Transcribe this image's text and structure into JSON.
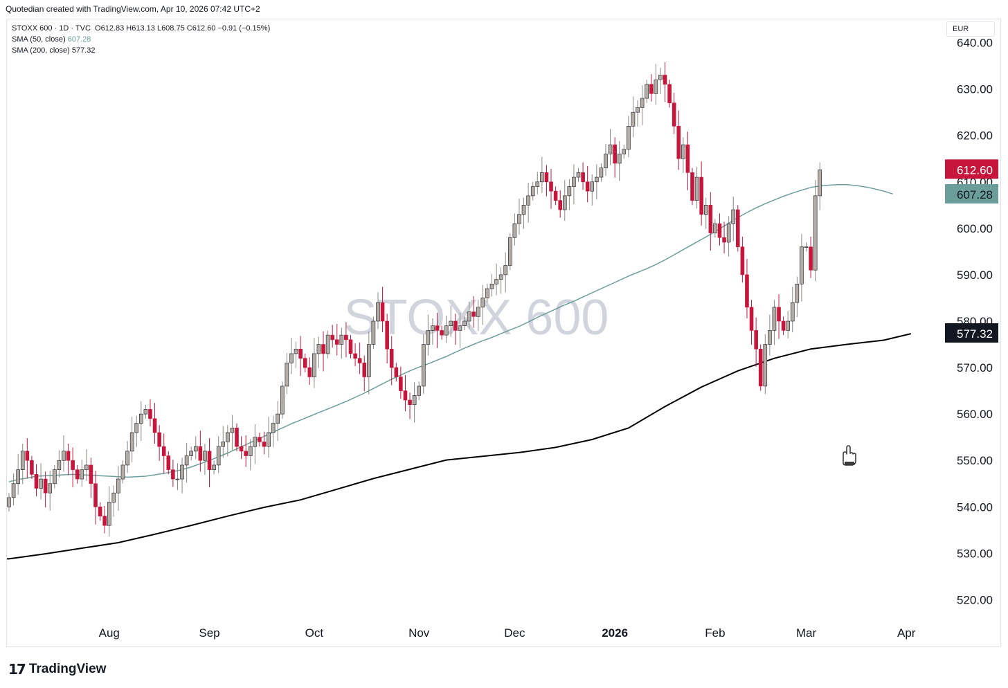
{
  "header": {
    "attribution": "Quotedian created with TradingView.com, Apr 10, 2026 07:42 UTC+2"
  },
  "legend": {
    "symbol": "STOXX 600 · 1D · TVC",
    "ohlc": "O612.83  H613.13  L608.75  C612.60  −0.91 (−0.15%)",
    "sma50_label": "SMA (50, close)",
    "sma50_value": "607.28",
    "sma200_label": "SMA (200, close)",
    "sma200_value": "577.32"
  },
  "currency": "EUR",
  "footer": {
    "brand": "TradingView",
    "brand_mark": "17"
  },
  "colors": {
    "up": "#b2aca5",
    "down": "#c7163c",
    "sma50": "#6b9e9a",
    "sma200": "#000000",
    "watermark": "#d1d4dc"
  },
  "chart_data": {
    "type": "candlestick",
    "watermark": "STOXX 600",
    "ylim": [
      515,
      645
    ],
    "y_ticks": [
      "640.00",
      "630.00",
      "620.00",
      "610.00",
      "600.00",
      "590.00",
      "580.00",
      "570.00",
      "560.00",
      "550.00",
      "540.00",
      "530.00",
      "520.00"
    ],
    "x_ticks": [
      {
        "label": "Aug",
        "index": 22,
        "bold": false
      },
      {
        "label": "Sep",
        "index": 44,
        "bold": false
      },
      {
        "label": "Oct",
        "index": 67,
        "bold": false
      },
      {
        "label": "Nov",
        "index": 90,
        "bold": false
      },
      {
        "label": "Dec",
        "index": 111,
        "bold": false
      },
      {
        "label": "2026",
        "index": 133,
        "bold": true
      },
      {
        "label": "Feb",
        "index": 155,
        "bold": false
      },
      {
        "label": "Mar",
        "index": 175,
        "bold": false
      },
      {
        "label": "Apr",
        "index": 197,
        "bold": false
      }
    ],
    "price_labels": [
      {
        "name": "last-price",
        "value": "612.60",
        "price": 612.6,
        "color": "#c7163c",
        "text_color": "#ffffff"
      },
      {
        "name": "sma50",
        "value": "607.28",
        "price": 607.28,
        "color": "#6b9e9a",
        "text_color": "#131722"
      },
      {
        "name": "sma200",
        "value": "577.32",
        "price": 577.32,
        "color": "#131722",
        "text_color": "#ffffff"
      }
    ],
    "close": [
      542,
      545,
      548,
      552,
      550,
      547,
      544,
      546,
      543,
      545,
      548,
      550,
      552,
      550,
      548,
      546,
      548,
      549,
      545,
      540,
      538,
      536,
      541,
      543,
      546,
      549,
      552,
      556,
      558,
      560,
      561,
      559,
      556,
      553,
      551,
      548,
      546,
      546,
      549,
      551,
      552,
      553,
      550,
      552,
      548,
      549,
      553,
      554,
      556,
      557,
      553,
      552,
      551,
      553,
      555,
      554,
      553,
      556,
      558,
      560,
      566,
      571,
      573,
      574,
      572,
      570,
      568,
      573,
      575,
      573,
      577,
      576,
      575,
      577,
      576,
      573,
      572,
      571,
      568,
      575,
      580,
      584,
      580,
      574,
      570,
      568,
      565,
      563,
      562,
      564,
      566,
      575,
      578,
      579,
      578,
      577,
      579,
      580,
      578,
      579,
      580,
      582,
      581,
      583,
      585,
      587,
      588,
      589,
      590,
      592,
      598,
      601,
      603,
      605,
      607,
      609,
      610,
      612,
      610,
      608,
      606,
      604,
      607,
      609,
      611,
      612,
      610,
      608,
      610,
      611,
      613,
      616,
      618,
      614,
      616,
      617,
      622,
      625,
      626,
      628,
      631,
      629,
      632,
      633,
      631,
      627,
      622,
      615,
      618,
      612,
      606,
      611,
      603,
      605,
      599,
      601,
      598,
      597,
      601,
      604,
      596,
      590,
      583,
      578,
      574,
      566,
      575,
      578,
      583,
      580,
      578,
      580,
      584,
      588,
      596,
      596,
      591,
      607,
      612.6
    ],
    "sma50": [
      545.4,
      545.9,
      546.2,
      546.6,
      546.7,
      546.8,
      546.9,
      547.0,
      546.9,
      546.8,
      546.7,
      546.6,
      546.5,
      546.4,
      546.5,
      546.6,
      546.9,
      547.2,
      547.6,
      548.0,
      548.6,
      549.3,
      550.0,
      550.8,
      551.6,
      552.5,
      553.4,
      554.3,
      555.2,
      556.1,
      557.0,
      557.9,
      558.7,
      559.5,
      560.3,
      561.1,
      561.9,
      562.7,
      563.6,
      564.5,
      565.5,
      566.5,
      567.5,
      568.4,
      569.3,
      570.1,
      570.8,
      571.6,
      572.4,
      573.3,
      574.2,
      575.0,
      575.8,
      576.5,
      577.3,
      578.1,
      578.9,
      579.8,
      580.8,
      581.7,
      582.6,
      583.5,
      584.3,
      585.2,
      586.1,
      587.0,
      587.9,
      588.8,
      589.7,
      590.5,
      591.3,
      592.2,
      593.2,
      594.3,
      595.4,
      596.5,
      597.6,
      598.7,
      599.9,
      601.1,
      602.3,
      603.4,
      604.4,
      605.3,
      606.1,
      606.9,
      607.6,
      608.2,
      608.8,
      609.1,
      609.3,
      609.4,
      609.4,
      609.2,
      608.9,
      608.5,
      608.0,
      607.4
    ],
    "sma200_x": [
      0,
      8,
      16,
      24,
      32,
      40,
      48,
      56,
      64,
      72,
      80,
      88,
      96,
      104,
      112,
      120,
      128,
      136,
      144,
      152,
      160,
      168,
      176,
      184,
      192,
      198
    ],
    "sma200": [
      528.8,
      529.9,
      531.1,
      532.3,
      534.1,
      536.0,
      538.0,
      539.9,
      541.5,
      543.8,
      546.1,
      548.1,
      550.1,
      550.9,
      551.7,
      552.8,
      554.5,
      557.0,
      561.6,
      565.8,
      569.3,
      572.0,
      574.0,
      575.0,
      575.9,
      577.3
    ]
  }
}
